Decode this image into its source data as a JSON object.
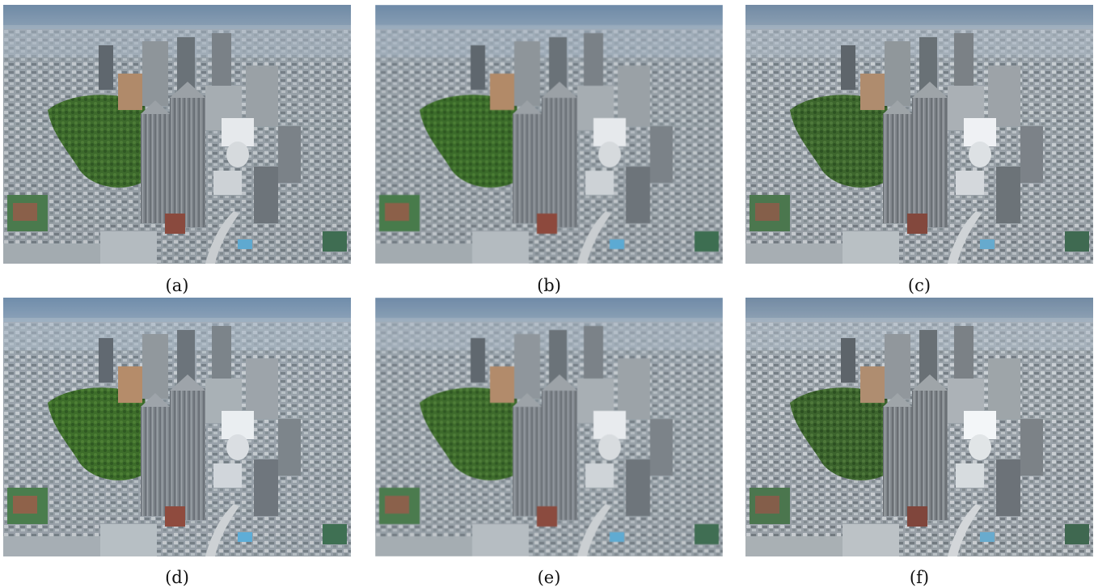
{
  "figure": {
    "panels": [
      {
        "id": "a",
        "caption": "(a)"
      },
      {
        "id": "b",
        "caption": "(b)"
      },
      {
        "id": "c",
        "caption": "(c)"
      },
      {
        "id": "d",
        "caption": "(d)"
      },
      {
        "id": "e",
        "caption": "(e)"
      },
      {
        "id": "f",
        "caption": "(f)"
      }
    ]
  },
  "colors": {
    "sky": "#7d97b0",
    "haze": "#9fb0c0",
    "city": "#8f989e",
    "park": "#3f6b2e",
    "tower": "#7c8288",
    "caption_text": "#111111"
  }
}
